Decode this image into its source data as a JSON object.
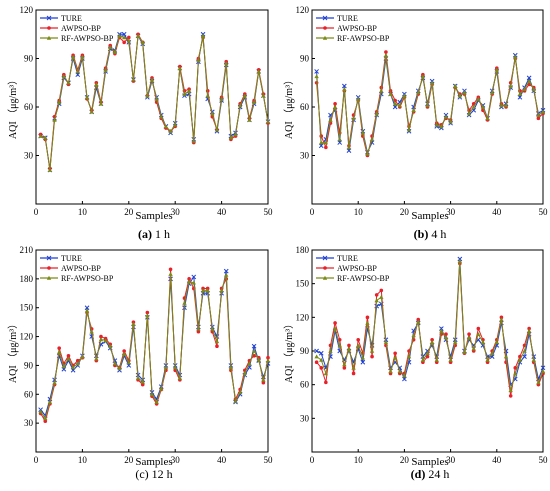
{
  "colors": {
    "TURE": "#1f3fd6",
    "AWPSO-BP": "#e8202a",
    "RF-AWPSO-BP": "#7a8a14"
  },
  "chart_data": [
    {
      "type": "line",
      "caption_bold": "(a)",
      "caption_rest": " 1 h",
      "xlabel": "Samples",
      "ylabel": "AQI （μg/m³）",
      "xlim": [
        0,
        50
      ],
      "ylim": [
        0,
        120
      ],
      "xticks": [
        0,
        10,
        20,
        30,
        40,
        50
      ],
      "yticks": [
        30,
        60,
        90,
        120
      ],
      "x": [
        1,
        2,
        3,
        4,
        5,
        6,
        7,
        8,
        9,
        10,
        11,
        12,
        13,
        14,
        15,
        16,
        17,
        18,
        19,
        20,
        21,
        22,
        23,
        24,
        25,
        26,
        27,
        28,
        29,
        30,
        31,
        32,
        33,
        34,
        35,
        36,
        37,
        38,
        39,
        40,
        41,
        42,
        43,
        44,
        45,
        46,
        47,
        48,
        49,
        50
      ],
      "series": [
        {
          "name": "TURE",
          "values": [
            42,
            41,
            21,
            53,
            62,
            78,
            75,
            90,
            80,
            90,
            66,
            57,
            72,
            62,
            82,
            96,
            95,
            105,
            105,
            100,
            77,
            104,
            99,
            66,
            76,
            66,
            55,
            48,
            44,
            50,
            84,
            67,
            68,
            40,
            88,
            105,
            65,
            57,
            45,
            64,
            86,
            42,
            44,
            60,
            66,
            52,
            62,
            82,
            67,
            51
          ]
        },
        {
          "name": "AWPSO-BP",
          "values": [
            43,
            40,
            22,
            54,
            64,
            80,
            74,
            92,
            83,
            92,
            65,
            58,
            75,
            63,
            84,
            98,
            93,
            103,
            100,
            103,
            76,
            105,
            100,
            67,
            78,
            63,
            53,
            47,
            45,
            48,
            85,
            70,
            71,
            38,
            90,
            103,
            70,
            54,
            46,
            66,
            88,
            40,
            42,
            62,
            68,
            53,
            64,
            83,
            68,
            50
          ]
        },
        {
          "name": "RF-AWPSO-BP",
          "values": [
            42,
            41,
            21,
            52,
            63,
            79,
            75,
            91,
            82,
            91,
            66,
            57,
            74,
            62,
            83,
            97,
            94,
            104,
            103,
            101,
            77,
            104,
            100,
            67,
            77,
            65,
            54,
            48,
            45,
            49,
            84,
            68,
            70,
            39,
            89,
            104,
            67,
            56,
            46,
            65,
            87,
            41,
            43,
            61,
            67,
            52,
            63,
            82,
            67,
            51
          ]
        }
      ]
    },
    {
      "type": "line",
      "caption_bold": "(b)",
      "caption_rest": " 4 h",
      "xlabel": "Samples",
      "ylabel": "AQI （μg/m³）",
      "xlim": [
        0,
        50
      ],
      "ylim": [
        0,
        120
      ],
      "xticks": [
        0,
        10,
        20,
        30,
        40,
        50
      ],
      "yticks": [
        30,
        60,
        90,
        120
      ],
      "x": [
        1,
        2,
        3,
        4,
        5,
        6,
        7,
        8,
        9,
        10,
        11,
        12,
        13,
        14,
        15,
        16,
        17,
        18,
        19,
        20,
        21,
        22,
        23,
        24,
        25,
        26,
        27,
        28,
        29,
        30,
        31,
        32,
        33,
        34,
        35,
        36,
        37,
        38,
        39,
        40,
        41,
        42,
        43,
        44,
        45,
        46,
        47,
        48,
        49,
        50
      ],
      "series": [
        {
          "name": "TURE",
          "values": [
            82,
            36,
            40,
            55,
            58,
            38,
            73,
            33,
            52,
            66,
            45,
            32,
            38,
            55,
            68,
            90,
            68,
            60,
            63,
            68,
            45,
            60,
            70,
            78,
            62,
            76,
            48,
            47,
            55,
            50,
            73,
            66,
            70,
            55,
            58,
            64,
            61,
            53,
            70,
            82,
            60,
            62,
            72,
            92,
            66,
            72,
            78,
            70,
            56,
            58
          ]
        },
        {
          "name": "AWPSO-BP",
          "values": [
            75,
            42,
            35,
            50,
            62,
            44,
            70,
            36,
            55,
            64,
            42,
            30,
            42,
            57,
            72,
            94,
            70,
            64,
            60,
            66,
            48,
            57,
            68,
            80,
            60,
            74,
            50,
            49,
            53,
            52,
            72,
            68,
            68,
            58,
            62,
            66,
            58,
            52,
            68,
            84,
            62,
            60,
            75,
            90,
            70,
            70,
            74,
            72,
            53,
            56
          ]
        },
        {
          "name": "RF-AWPSO-BP",
          "values": [
            79,
            38,
            38,
            52,
            60,
            40,
            71,
            35,
            53,
            65,
            44,
            31,
            40,
            56,
            70,
            92,
            68,
            62,
            61,
            67,
            46,
            58,
            69,
            79,
            61,
            75,
            49,
            48,
            54,
            51,
            73,
            67,
            69,
            56,
            60,
            65,
            60,
            53,
            69,
            83,
            61,
            61,
            73,
            91,
            68,
            71,
            76,
            71,
            55,
            57
          ]
        }
      ]
    },
    {
      "type": "line",
      "caption_bold": "",
      "caption_rest": "(c) 12 h",
      "xlabel": "Samples",
      "ylabel": "AQI （μg/m³）",
      "xlim": [
        0,
        50
      ],
      "ylim": [
        0,
        210
      ],
      "xticks": [
        0,
        10,
        20,
        30,
        40,
        50
      ],
      "yticks": [
        30,
        60,
        90,
        120,
        150,
        180,
        210
      ],
      "x": [
        1,
        2,
        3,
        4,
        5,
        6,
        7,
        8,
        9,
        10,
        11,
        12,
        13,
        14,
        15,
        16,
        17,
        18,
        19,
        20,
        21,
        22,
        23,
        24,
        25,
        26,
        27,
        28,
        29,
        30,
        31,
        32,
        33,
        34,
        35,
        36,
        37,
        38,
        39,
        40,
        41,
        42,
        43,
        44,
        45,
        46,
        47,
        48,
        49,
        50
      ],
      "series": [
        {
          "name": "TURE",
          "values": [
            44,
            38,
            55,
            75,
            100,
            86,
            95,
            85,
            90,
            100,
            150,
            120,
            100,
            112,
            115,
            108,
            95,
            85,
            100,
            90,
            130,
            80,
            75,
            140,
            62,
            55,
            68,
            90,
            180,
            90,
            80,
            150,
            175,
            182,
            130,
            165,
            165,
            130,
            120,
            165,
            188,
            90,
            52,
            60,
            80,
            88,
            110,
            95,
            78,
            92
          ]
        },
        {
          "name": "AWPSO-BP",
          "values": [
            40,
            32,
            50,
            70,
            108,
            92,
            100,
            90,
            95,
            98,
            145,
            128,
            95,
            120,
            118,
            112,
            90,
            88,
            105,
            95,
            135,
            75,
            70,
            145,
            58,
            50,
            65,
            85,
            190,
            85,
            75,
            160,
            180,
            170,
            125,
            170,
            170,
            125,
            110,
            170,
            180,
            85,
            55,
            65,
            85,
            95,
            100,
            98,
            72,
            98
          ]
        },
        {
          "name": "RF-AWPSO-BP",
          "values": [
            42,
            35,
            52,
            72,
            104,
            89,
            97,
            88,
            92,
            99,
            147,
            125,
            97,
            117,
            116,
            110,
            92,
            87,
            102,
            93,
            133,
            77,
            73,
            142,
            60,
            52,
            66,
            88,
            185,
            88,
            77,
            155,
            177,
            176,
            128,
            168,
            168,
            128,
            115,
            168,
            184,
            88,
            53,
            62,
            82,
            92,
            105,
            96,
            75,
            95
          ]
        }
      ]
    },
    {
      "type": "line",
      "caption_bold": "(d)",
      "caption_rest": " 24 h",
      "xlabel": "Samples",
      "ylabel": "AQI （μg/m³）",
      "xlim": [
        0,
        50
      ],
      "ylim": [
        0,
        180
      ],
      "xticks": [
        0,
        10,
        20,
        30,
        40,
        50
      ],
      "yticks": [
        30,
        60,
        90,
        120,
        150,
        180
      ],
      "x": [
        1,
        2,
        3,
        4,
        5,
        6,
        7,
        8,
        9,
        10,
        11,
        12,
        13,
        14,
        15,
        16,
        17,
        18,
        19,
        20,
        21,
        22,
        23,
        24,
        25,
        26,
        27,
        28,
        29,
        30,
        31,
        32,
        33,
        34,
        35,
        36,
        37,
        38,
        39,
        40,
        41,
        42,
        43,
        44,
        45,
        46,
        47,
        48,
        49,
        50
      ],
      "series": [
        {
          "name": "TURE",
          "values": [
            90,
            88,
            75,
            85,
            108,
            90,
            82,
            90,
            80,
            92,
            80,
            110,
            95,
            130,
            132,
            100,
            75,
            80,
            75,
            65,
            80,
            108,
            115,
            85,
            90,
            95,
            85,
            110,
            100,
            85,
            100,
            172,
            90,
            100,
            95,
            100,
            95,
            85,
            85,
            95,
            115,
            90,
            60,
            65,
            80,
            85,
            105,
            85,
            65,
            75
          ]
        },
        {
          "name": "AWPSO-BP",
          "values": [
            80,
            75,
            62,
            95,
            115,
            100,
            75,
            95,
            70,
            100,
            88,
            120,
            85,
            140,
            144,
            95,
            70,
            88,
            70,
            70,
            90,
            100,
            118,
            80,
            85,
            100,
            80,
            105,
            105,
            80,
            95,
            168,
            88,
            105,
            90,
            110,
            100,
            80,
            90,
            100,
            120,
            80,
            50,
            75,
            85,
            95,
            110,
            80,
            60,
            70
          ]
        },
        {
          "name": "RF-AWPSO-BP",
          "values": [
            85,
            82,
            70,
            90,
            110,
            95,
            78,
            92,
            75,
            95,
            84,
            115,
            90,
            135,
            138,
            98,
            72,
            84,
            72,
            68,
            85,
            104,
            116,
            82,
            88,
            98,
            82,
            108,
            102,
            82,
            98,
            170,
            89,
            102,
            92,
            105,
            98,
            82,
            88,
            98,
            118,
            85,
            55,
            70,
            82,
            90,
            108,
            82,
            62,
            72
          ]
        }
      ]
    }
  ]
}
